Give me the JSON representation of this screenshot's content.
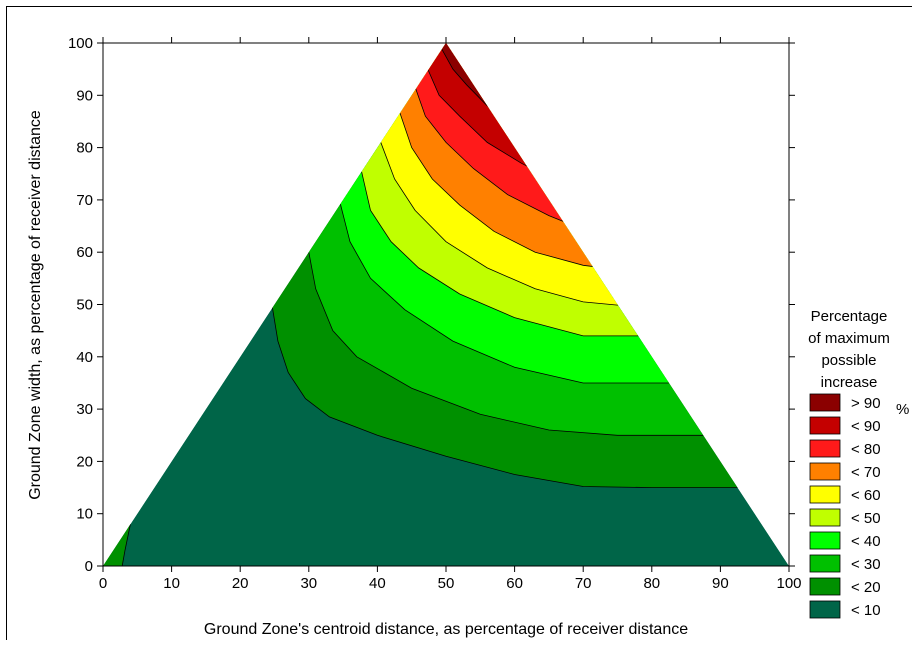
{
  "chart_data": {
    "type": "contour",
    "title": "",
    "xlabel": "Ground Zone's centroid distance, as percentage of receiver distance",
    "ylabel": "Ground Zone width, as percentage of receiver distance",
    "xlim": [
      0,
      100
    ],
    "ylim": [
      0,
      100
    ],
    "x_ticks": [
      "0",
      "10",
      "20",
      "30",
      "40",
      "50",
      "60",
      "70",
      "80",
      "90",
      "100"
    ],
    "y_ticks": [
      "0",
      "10",
      "20",
      "30",
      "40",
      "50",
      "60",
      "70",
      "80",
      "90",
      "100"
    ],
    "domain_triangle": [
      [
        0,
        0
      ],
      [
        50,
        100
      ],
      [
        100,
        0
      ]
    ],
    "legend": {
      "title_lines": [
        "Percentage",
        "of maximum",
        "possible",
        "increase"
      ],
      "placement": "right",
      "unit": "%",
      "entries": [
        {
          "label": "> 90",
          "color": "#8b0000"
        },
        {
          "label": "< 90",
          "color": "#c40000"
        },
        {
          "label": "< 80",
          "color": "#ff1a1a"
        },
        {
          "label": "< 70",
          "color": "#ff8000"
        },
        {
          "label": "< 60",
          "color": "#ffff00"
        },
        {
          "label": "< 50",
          "color": "#c0ff00"
        },
        {
          "label": "< 40",
          "color": "#00ff00"
        },
        {
          "label": "< 30",
          "color": "#00c000"
        },
        {
          "label": "< 20",
          "color": "#009000"
        },
        {
          "label": "< 10",
          "color": "#006548"
        }
      ]
    },
    "contours": [
      {
        "level": 10,
        "points": [
          [
            2.8,
            0
          ],
          [
            3.2,
            3
          ],
          [
            4.0,
            8
          ]
        ]
      },
      {
        "level": 10,
        "points": [
          [
            24.7,
            49.4
          ],
          [
            25.5,
            43
          ],
          [
            27,
            37
          ],
          [
            29.5,
            32
          ],
          [
            33,
            28.5
          ],
          [
            40,
            25
          ],
          [
            50,
            21
          ],
          [
            60,
            17.5
          ],
          [
            70,
            15.2
          ],
          [
            80,
            15
          ],
          [
            92.5,
            15
          ]
        ]
      },
      {
        "level": 20,
        "points": [
          [
            30,
            60
          ],
          [
            31,
            53
          ],
          [
            33.5,
            45
          ],
          [
            37,
            40
          ],
          [
            45,
            34
          ],
          [
            55,
            29
          ],
          [
            65,
            26
          ],
          [
            75,
            25
          ],
          [
            87.5,
            25
          ]
        ]
      },
      {
        "level": 30,
        "points": [
          [
            34.6,
            69.2
          ],
          [
            36,
            62
          ],
          [
            39,
            55
          ],
          [
            44,
            49
          ],
          [
            51,
            43
          ],
          [
            60,
            38
          ],
          [
            70,
            35
          ],
          [
            82.5,
            35
          ]
        ]
      },
      {
        "level": 40,
        "points": [
          [
            37.7,
            75.4
          ],
          [
            39,
            68
          ],
          [
            42,
            62
          ],
          [
            46,
            57
          ],
          [
            52,
            52
          ],
          [
            60,
            47.5
          ],
          [
            70,
            44
          ],
          [
            80,
            44
          ]
        ]
      },
      {
        "level": 50,
        "points": [
          [
            40.5,
            81
          ],
          [
            42.5,
            74
          ],
          [
            45.5,
            68
          ],
          [
            50,
            62
          ],
          [
            56,
            57
          ],
          [
            63,
            53
          ],
          [
            70,
            50.5
          ],
          [
            78,
            49.5
          ]
        ]
      },
      {
        "level": 60,
        "points": [
          [
            43.3,
            86.6
          ],
          [
            45,
            80
          ],
          [
            48,
            74
          ],
          [
            52,
            69
          ],
          [
            57,
            64
          ],
          [
            63,
            60
          ],
          [
            70,
            57.5
          ],
          [
            75.5,
            56.6
          ]
        ]
      },
      {
        "level": 70,
        "points": [
          [
            45.6,
            91.2
          ],
          [
            47,
            86
          ],
          [
            50,
            81
          ],
          [
            54,
            76
          ],
          [
            59,
            71
          ],
          [
            65,
            67
          ],
          [
            73.5,
            62.5
          ]
        ]
      },
      {
        "level": 80,
        "points": [
          [
            47.4,
            94.8
          ],
          [
            49,
            90
          ],
          [
            52,
            86
          ],
          [
            56,
            81
          ],
          [
            61,
            77
          ],
          [
            67,
            73
          ],
          [
            70,
            70
          ]
        ]
      },
      {
        "level": 90,
        "points": [
          [
            49.4,
            98.8
          ],
          [
            51,
            95
          ],
          [
            53,
            92
          ],
          [
            56,
            88
          ],
          [
            60,
            84
          ],
          [
            64.5,
            80
          ],
          [
            66.5,
            77
          ]
        ]
      }
    ]
  }
}
